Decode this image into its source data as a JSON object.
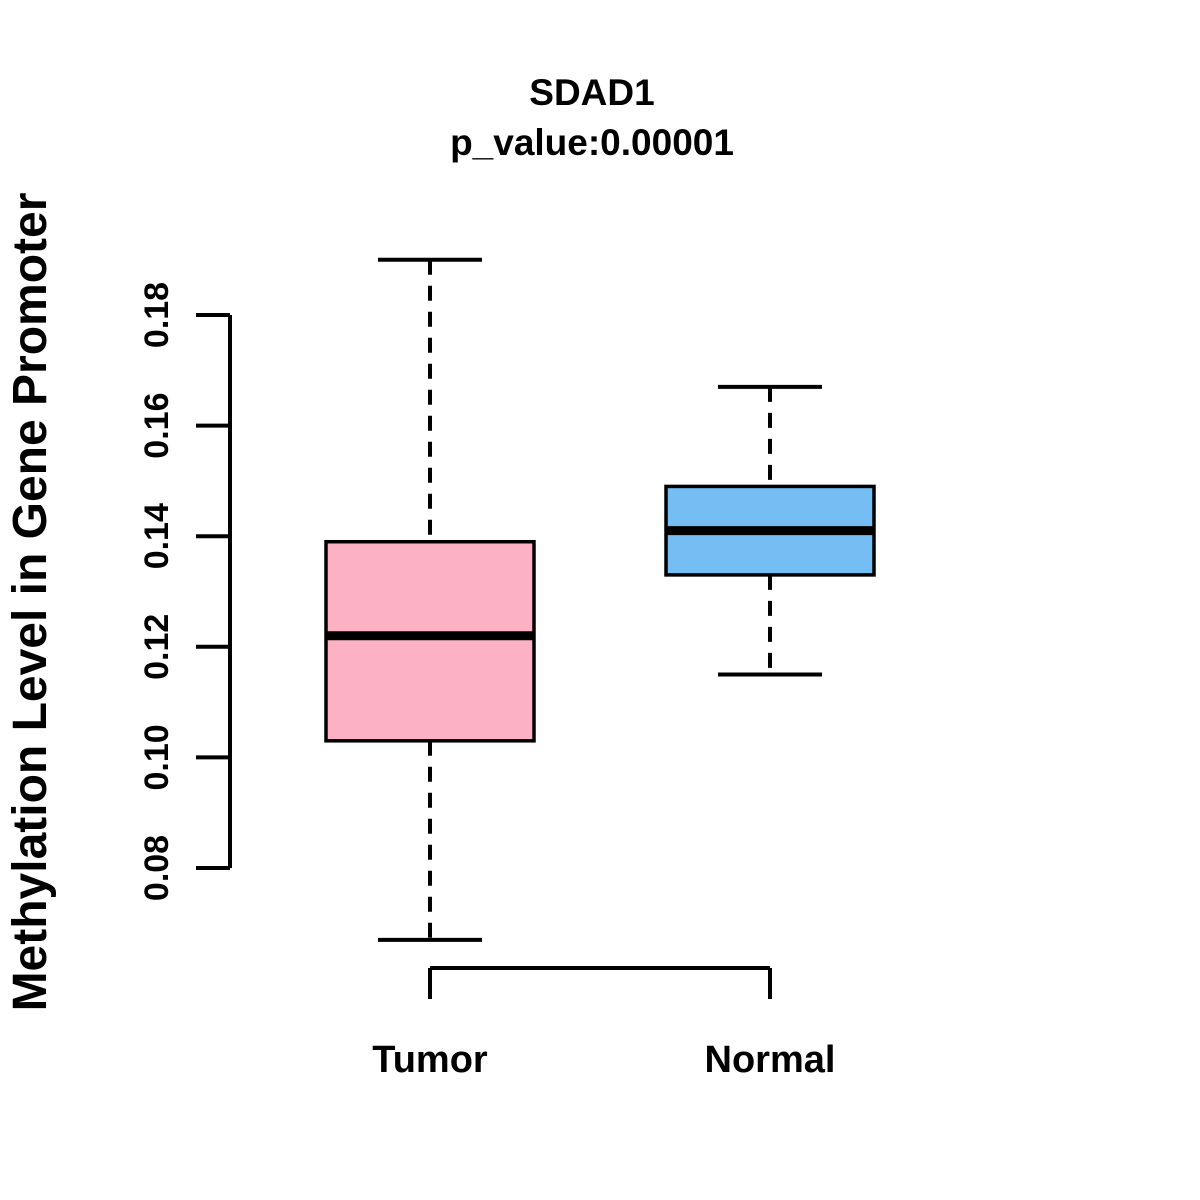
{
  "chart_data": {
    "type": "boxplot",
    "title": "SDAD1",
    "subtitle": "p_value:0.00001",
    "xlabel": "",
    "ylabel": "Methylation Level in Gene Promoter",
    "categories": [
      "Tumor",
      "Normal"
    ],
    "yticks": [
      0.08,
      0.1,
      0.12,
      0.14,
      0.16,
      0.18
    ],
    "axis_range": [
      0.08,
      0.18
    ],
    "ylim": [
      0.06,
      0.195
    ],
    "grid": false,
    "legend": "none",
    "colors": {
      "tumor_fill": "#FCB2C4",
      "normal_fill": "#74BEF4",
      "stroke": "#000000",
      "background": "#ffffff"
    },
    "series": [
      {
        "name": "Tumor",
        "color": "#FCB2C4",
        "whisker_low": 0.067,
        "q1": 0.103,
        "median": 0.122,
        "q3": 0.139,
        "whisker_high": 0.19
      },
      {
        "name": "Normal",
        "color": "#74BEF4",
        "whisker_low": 0.115,
        "q1": 0.133,
        "median": 0.141,
        "q3": 0.149,
        "whisker_high": 0.167
      }
    ]
  }
}
